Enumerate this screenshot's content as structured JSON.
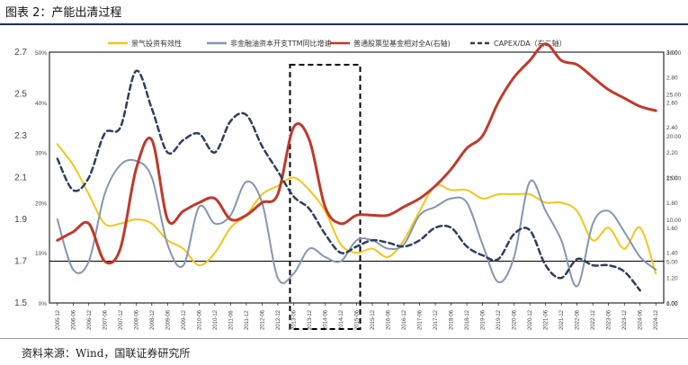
{
  "figure": {
    "title": "图表 2：产能出清过程",
    "source": "资料来源：Wind，国联证券研究所"
  },
  "colors": {
    "series_yellow": "#f5c518",
    "series_blue_gray": "#8496b0",
    "series_red": "#c0392b",
    "series_dash": "#2f3e5c",
    "frame": "#000000",
    "rule": "#1e2f5e"
  },
  "chart_data": {
    "type": "line",
    "legend_position": "top",
    "grid": false,
    "x": [
      "2005-12",
      "2006-06",
      "2006-12",
      "2007-06",
      "2007-12",
      "2008-06",
      "2008-12",
      "2009-06",
      "2009-12",
      "2010-06",
      "2010-12",
      "2011-06",
      "2011-12",
      "2012-06",
      "2012-12",
      "2013-06",
      "2013-12",
      "2014-06",
      "2014-12",
      "2015-06",
      "2015-12",
      "2016-06",
      "2016-12",
      "2017-06",
      "2017-12",
      "2018-06",
      "2018-12",
      "2019-06",
      "2019-12",
      "2020-06",
      "2020-12",
      "2021-06",
      "2021-12",
      "2022-06",
      "2022-12",
      "2023-06",
      "2023-12",
      "2024-06",
      "2024-12"
    ],
    "axes": {
      "left_outer": {
        "ticks": [
          "1.5",
          "1.7",
          "1.9",
          "2.1",
          "2.3",
          "2.5",
          "2.7"
        ],
        "range": [
          1.5,
          2.7
        ]
      },
      "left_inner": {
        "ticks": [
          "0%",
          "10%",
          "20%",
          "30%",
          "40%",
          "50%"
        ],
        "range": [
          -10,
          50
        ],
        "unit": "%"
      },
      "right_inner": {
        "ticks": [
          "0.00",
          "5.00",
          "10.00",
          "15.00",
          "20.00",
          "25.00",
          "30.00"
        ],
        "range": [
          0,
          30
        ]
      },
      "right_outer": {
        "ticks": [
          "1.00",
          "1.20",
          "1.40",
          "1.60",
          "1.80",
          "2.00",
          "2.20",
          "2.40",
          "2.60",
          "2.80",
          "3.00"
        ],
        "range": [
          1.0,
          3.0
        ]
      }
    },
    "highlight_box": {
      "x_start": "2013-06",
      "x_end": "2015-06",
      "style": "dashed"
    },
    "series": [
      {
        "name": "景气投资有效性",
        "axis": "left_inner",
        "style": "solid",
        "values": [
          28,
          23,
          16,
          9,
          9,
          10,
          9,
          5,
          3,
          -1,
          2,
          8,
          11,
          16,
          18,
          20,
          17,
          12,
          4,
          2,
          3,
          1,
          5,
          12,
          18,
          17,
          17,
          15,
          16,
          16,
          16,
          14,
          14,
          12,
          5,
          8,
          3,
          8,
          -3
        ]
      },
      {
        "name": "非金融油资本开支TTM同比增速",
        "axis": "left_inner",
        "style": "solid",
        "values": [
          10,
          -2,
          0,
          16,
          23,
          24,
          20,
          4,
          -1,
          13,
          9,
          11,
          19,
          14,
          -4,
          -3,
          3,
          1,
          0,
          5,
          5,
          3,
          4,
          11,
          13,
          15,
          14,
          4,
          -5,
          1,
          19,
          12,
          5,
          -6,
          9,
          12,
          7,
          1,
          -2
        ]
      },
      {
        "name": "普通股票型基金相对全A(右轴)",
        "axis": "right_inner",
        "style": "solid",
        "values": [
          7.5,
          8.5,
          9.5,
          5,
          6.5,
          16,
          19.5,
          10,
          11,
          12,
          12.5,
          10,
          10.5,
          12,
          13,
          21,
          19.5,
          11.5,
          9.5,
          10.5,
          10.5,
          10.5,
          11.5,
          12.5,
          14,
          16,
          18.5,
          20,
          24,
          27,
          29,
          31,
          29,
          28.5,
          27,
          25.5,
          24.5,
          23.5,
          23
        ]
      },
      {
        "name": "CAPEX/DA（右二轴）",
        "axis": "right_outer",
        "style": "dashed",
        "values": [
          2.15,
          1.9,
          2.0,
          2.35,
          2.4,
          2.85,
          2.55,
          2.2,
          2.3,
          2.35,
          2.2,
          2.45,
          2.5,
          2.25,
          2.05,
          1.85,
          1.75,
          1.55,
          1.4,
          1.45,
          1.5,
          1.48,
          1.45,
          1.5,
          1.6,
          1.6,
          1.45,
          1.38,
          1.35,
          1.55,
          1.58,
          1.3,
          1.2,
          1.35,
          1.3,
          1.3,
          1.25,
          1.1,
          null
        ]
      }
    ]
  }
}
